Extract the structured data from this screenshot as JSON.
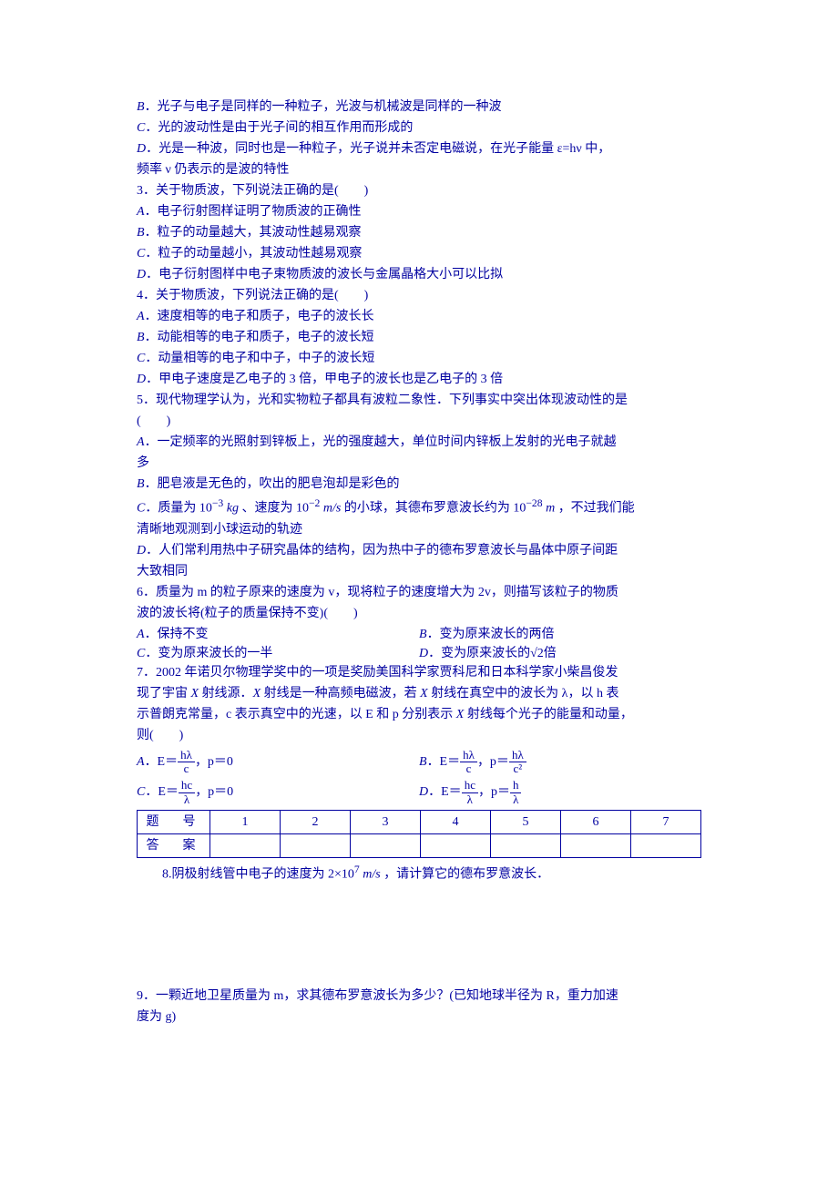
{
  "text_color": "#0000a0",
  "background_color": "#ffffff",
  "font_size": 14,
  "body_width": 920,
  "body_height": 1302,
  "lines": {
    "q2B": "．光子与电子是同样的一种粒子，光波与机械波是同样的一种波",
    "q2C": "．光的波动性是由于光子间的相互作用而形成的",
    "q2D1": "．光是一种波，同时也是一种粒子，光子说并未否定电磁说，在光子能量 ε=hν 中，",
    "q2D2": "频率 ν 仍表示的是波的特性",
    "q3": "3．关于物质波，下列说法正确的是(　　)",
    "q3A": "．电子衍射图样证明了物质波的正确性",
    "q3B": "．粒子的动量越大，其波动性越易观察",
    "q3C": "．粒子的动量越小，其波动性越易观察",
    "q3D": "．电子衍射图样中电子束物质波的波长与金属晶格大小可以比拟",
    "q4": "4．关于物质波，下列说法正确的是(　　)",
    "q4A": "．速度相等的电子和质子，电子的波长长",
    "q4B": "．动能相等的电子和质子，电子的波长短",
    "q4C": "．动量相等的电子和中子，中子的波长短",
    "q4D": "．甲电子速度是乙电子的 3 倍，甲电子的波长也是乙电子的 3 倍",
    "q5a": "5．现代物理学认为，光和实物粒子都具有波粒二象性．下列事实中突出体现波动性的是",
    "q5b": "(　　)",
    "q5A": "．一定频率的光照射到锌板上，光的强度越大，单位时间内锌板上发射的光电子就越",
    "q5A2": "多",
    "q5B": "．肥皂液是无色的，吹出的肥皂泡却是彩色的",
    "q5Cpre": "．质量为 10",
    "q5Csup1": "−3",
    "q5Cmid1": " 、速度为 10",
    "q5Csup2": "−2",
    "q5Cmid2": " 的小球，其德布罗意波长约为 10",
    "q5Csup3": "−28",
    "q5Cend": " ，不过我们能",
    "q5C_kg": "kg",
    "q5C_ms": "m/s",
    "q5C_m": "m",
    "q5C2": "清晰地观测到小球运动的轨迹",
    "q5D1": "．人们常利用热中子研究晶体的结构，因为热中子的德布罗意波长与晶体中原子间距",
    "q5D2": "大致相同",
    "q6a": "6．质量为 m 的粒子原来的速度为 v，现将粒子的速度增大为 2v，则描写该粒子的物质",
    "q6b": "波的波长将(粒子的质量保持不变)(　　)",
    "q6A": "．保持不变",
    "q6B": "．变为原来波长的两倍",
    "q6C": "．变为原来波长的一半",
    "q6D": "．变为原来波长的√2倍",
    "q7a": "7．2002 年诺贝尔物理学奖中的一项是奖励美国科学家贾科尼和日本科学家小柴昌俊发",
    "q7b1": "现了宇宙 ",
    "q7b2": " 射线源．",
    "q7b3": " 射线是一种高频电磁波，若 ",
    "q7b4": " 射线在真空中的波长为 λ，以 h 表",
    "q7c1": "示普朗克常量，c 表示真空中的光速，以 E 和 p 分别表示 ",
    "q7c2": " 射线每个光子的能量和动量，",
    "q7d": "则(　　)",
    "q7Apre": "．E＝",
    "q7Apost": "，p＝0",
    "q7Bpre": "．E＝",
    "q7Bmid": "，p＝",
    "q7Cpre": "．E＝",
    "q7Cpost": "，p＝0",
    "q7Dpre": "．E＝",
    "q7Dmid": "，p＝",
    "hlam": "hλ",
    "c": "c",
    "c2": "c²",
    "hc": "hc",
    "lam": "λ",
    "h": "h",
    "thead": "题　号",
    "ahead": "答　案",
    "cols": [
      "1",
      "2",
      "3",
      "4",
      "5",
      "6",
      "7"
    ],
    "q8a": "8.阴极射线管中电子的速度为 2×10",
    "q8sup": "7",
    "q8b": " ，请计算它的德布罗意波长．",
    "q8_ms": "m/s",
    "q9": "9．一颗近地卫星质量为 m，求其德布罗意波长为多少？(已知地球半径为 R，重力加速",
    "q9b": "度为 g)",
    "X": "X",
    "lblA": "A",
    "lblB": "B",
    "lblC": "C",
    "lblD": "D"
  }
}
